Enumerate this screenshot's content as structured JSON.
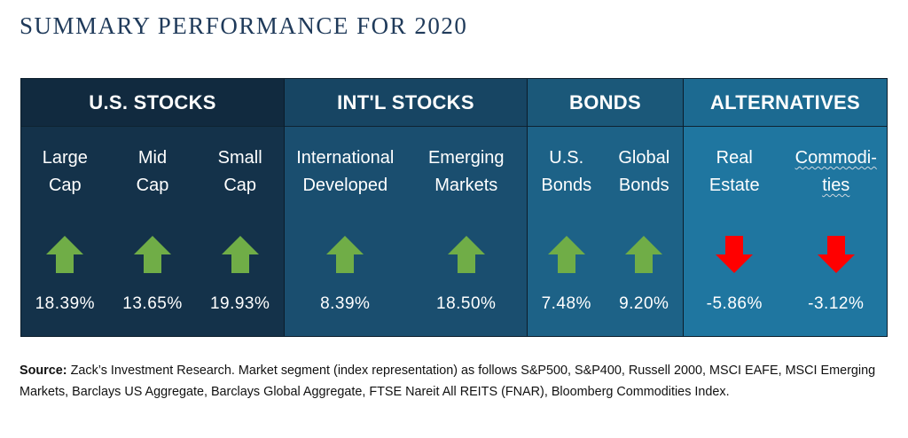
{
  "title": "SUMMARY PERFORMANCE FOR 2020",
  "colors": {
    "up_arrow": "#70ad47",
    "down_arrow": "#ff0000"
  },
  "segments": [
    {
      "name": "U.S. STOCKS",
      "columns": [
        {
          "label": "Large\nCap",
          "direction": "up",
          "value": "18.39%"
        },
        {
          "label": "Mid\nCap",
          "direction": "up",
          "value": "13.65%"
        },
        {
          "label": "Small\nCap",
          "direction": "up",
          "value": "19.93%"
        }
      ]
    },
    {
      "name": "INT'L STOCKS",
      "columns": [
        {
          "label": "International\nDeveloped",
          "direction": "up",
          "value": "8.39%"
        },
        {
          "label": "Emerging\nMarkets",
          "direction": "up",
          "value": "18.50%"
        }
      ]
    },
    {
      "name": "BONDS",
      "columns": [
        {
          "label": "U.S.\nBonds",
          "direction": "up",
          "value": "7.48%"
        },
        {
          "label": "Global\nBonds",
          "direction": "up",
          "value": "9.20%"
        }
      ]
    },
    {
      "name": "ALTERNATIVES",
      "columns": [
        {
          "label": "Real\nEstate",
          "direction": "down",
          "value": "-5.86%"
        },
        {
          "label": "Commodi-\nties",
          "direction": "down",
          "value": "-3.12%"
        }
      ]
    }
  ],
  "source": {
    "label": "Source:",
    "text": "Zack’s Investment Research. Market segment (index representation) as follows S&P500, S&P400, Russell 2000, MSCI EAFE, MSCI Emerging Markets, Barclays US Aggregate, Barclays Global Aggregate, FTSE Nareit All REITS (FNAR), Bloomberg Commodities Index."
  }
}
